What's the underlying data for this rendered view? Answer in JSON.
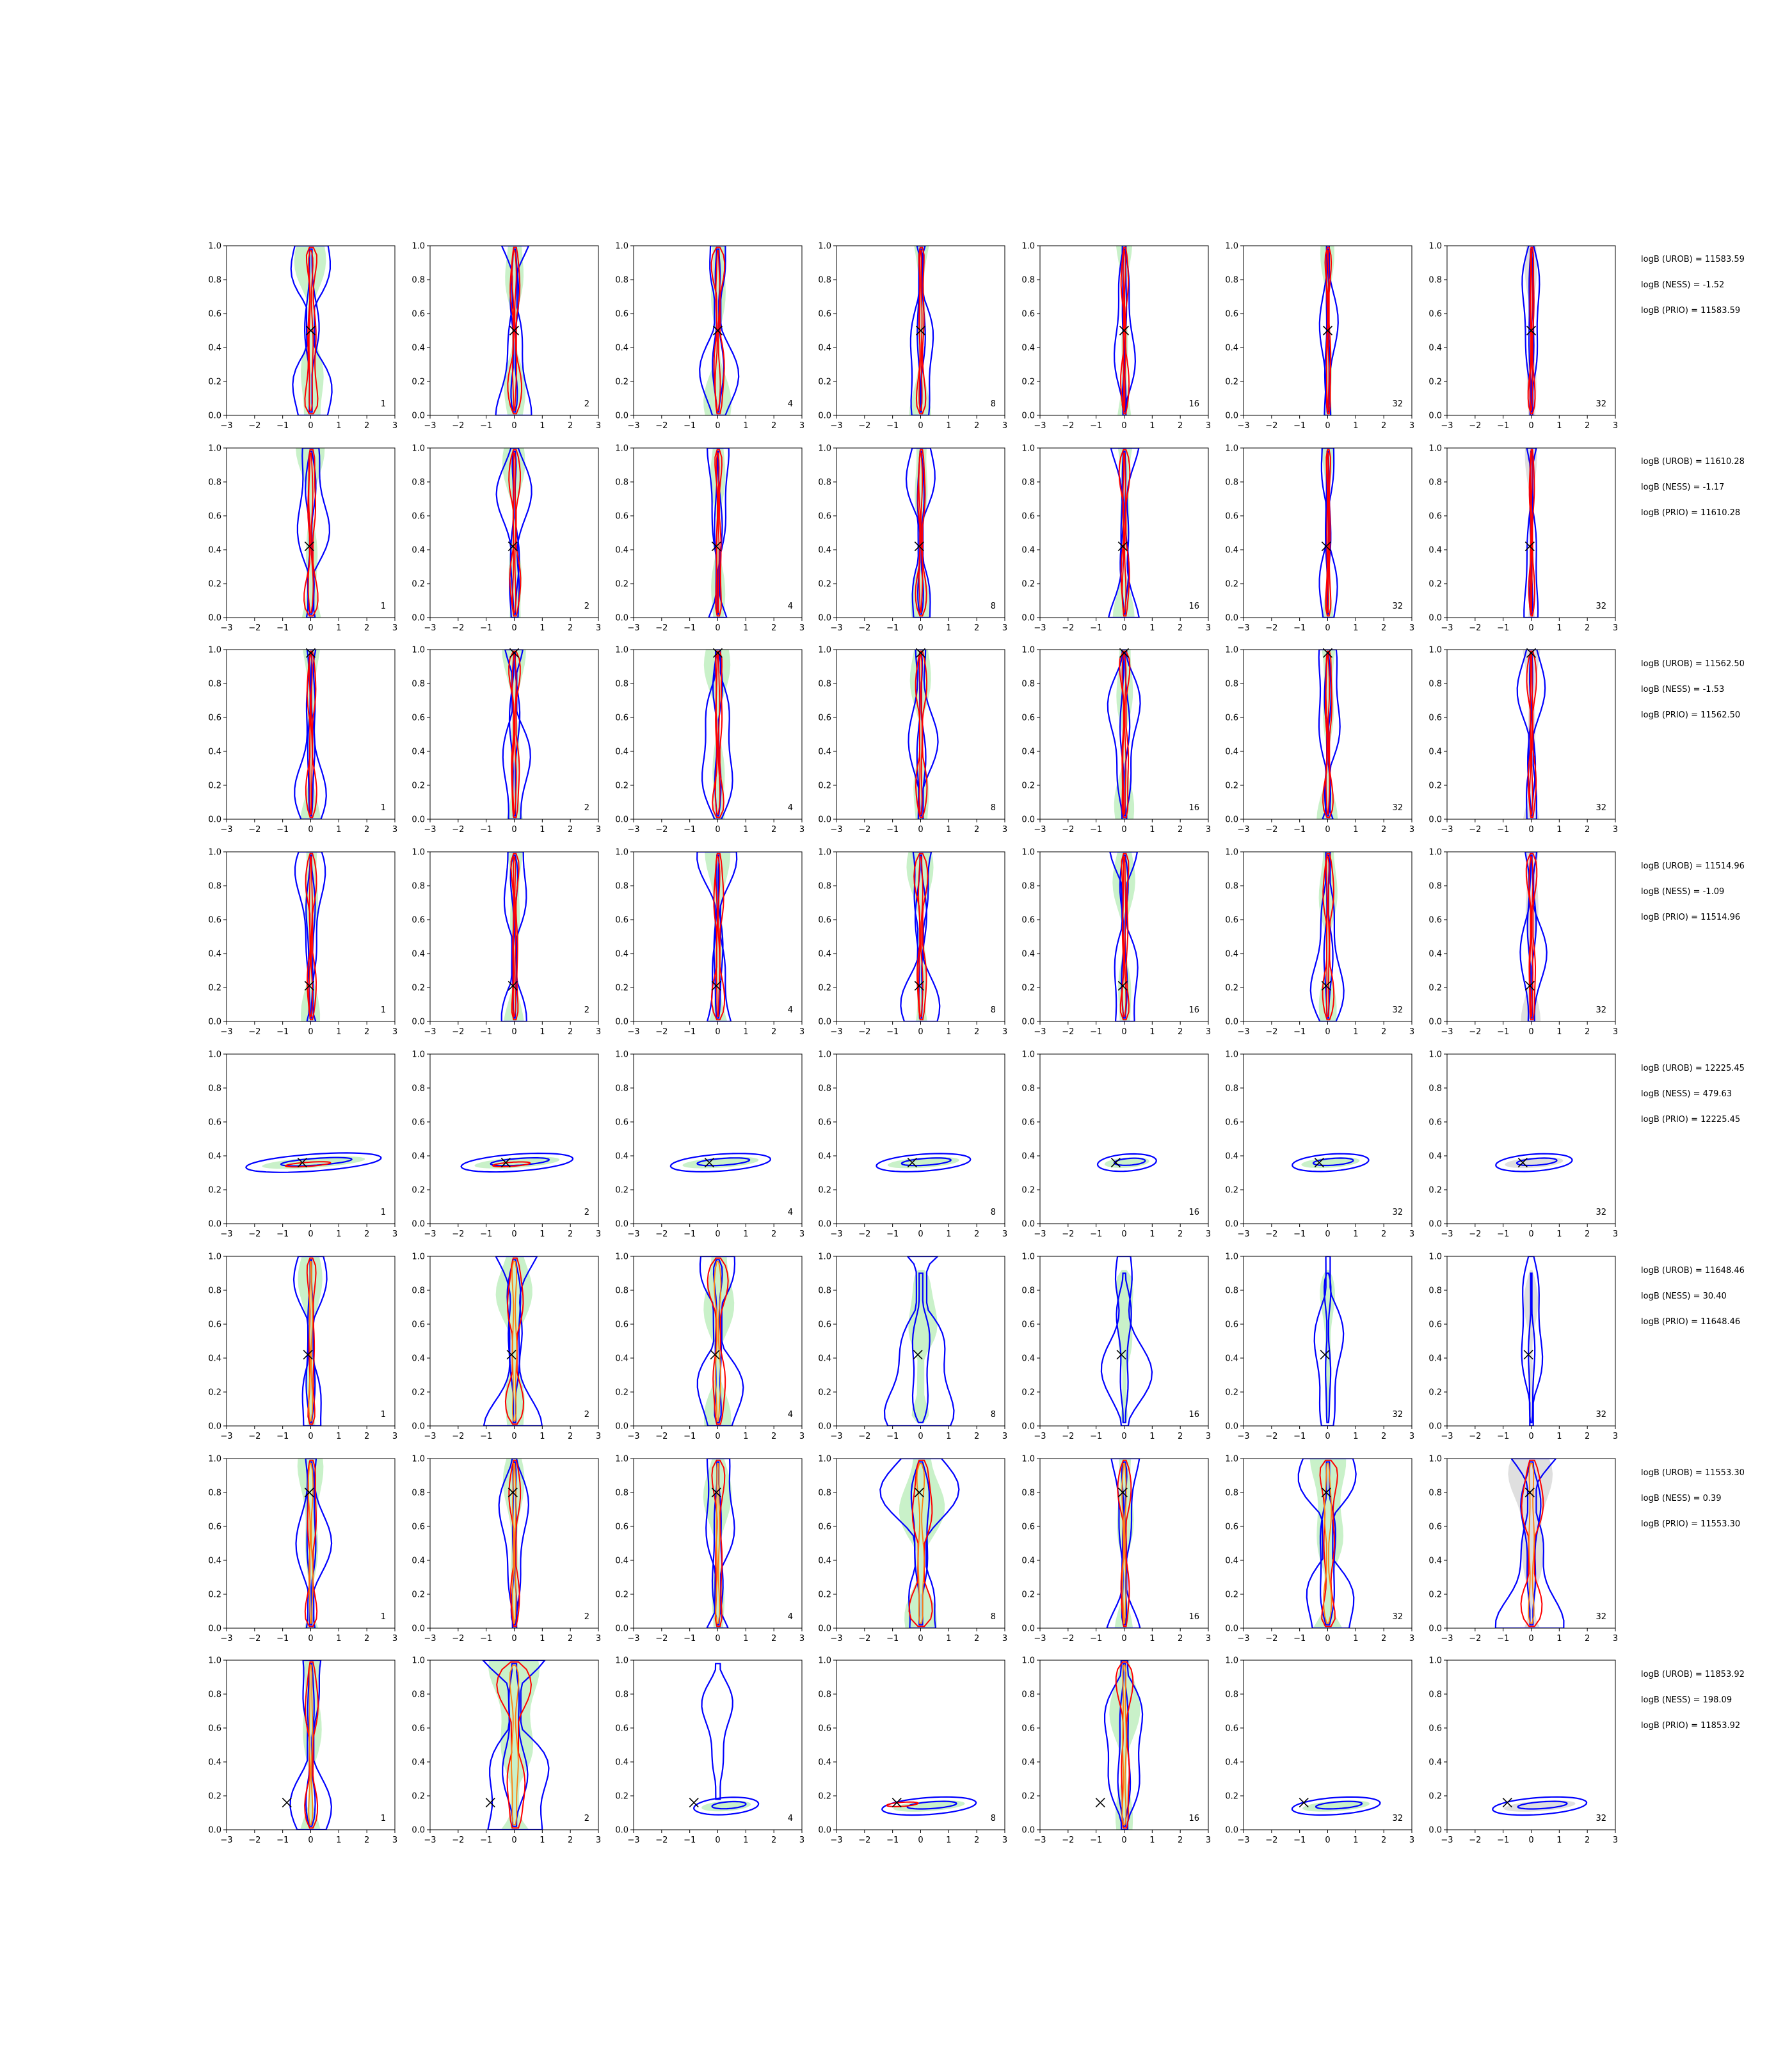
{
  "chart_data": {
    "type": "contour-grid",
    "rows": 8,
    "cols": 7,
    "xlim": [
      -3,
      3
    ],
    "ylim": [
      0,
      1
    ],
    "x_ticks": [
      "−3",
      "−2",
      "−1",
      "0",
      "1",
      "2",
      "3"
    ],
    "y_ticks": [
      "0.0",
      "0.2",
      "0.4",
      "0.6",
      "0.8",
      "1.0"
    ],
    "column_labels": [
      "1",
      "2",
      "4",
      "8",
      "16",
      "32",
      "32"
    ],
    "colors": {
      "outer_contour": "#0000ff",
      "inner_contour": "#ff0000",
      "inner_contour_alt": "#ff7f0e",
      "green_fill": "#bfeebf",
      "grey_fill": "#d9d9d9",
      "marker": "#000000"
    },
    "panels": [
      {
        "row": 0,
        "marker": [
          0.0,
          0.5
        ],
        "shape": "vertical",
        "widths": [
          0.75,
          0.55,
          0.6,
          0.45,
          0.35,
          0.3,
          0.3
        ]
      },
      {
        "row": 1,
        "marker": [
          -0.05,
          0.42
        ],
        "shape": "vertical",
        "widths": [
          0.6,
          0.5,
          0.4,
          0.45,
          0.45,
          0.3,
          0.25
        ]
      },
      {
        "row": 2,
        "marker": [
          0.0,
          0.98
        ],
        "shape": "vertical",
        "widths": [
          0.45,
          0.5,
          0.55,
          0.5,
          0.5,
          0.45,
          0.4
        ]
      },
      {
        "row": 3,
        "marker": [
          -0.05,
          0.21
        ],
        "shape": "vertical",
        "widths": [
          0.45,
          0.45,
          0.55,
          0.55,
          0.5,
          0.5,
          0.45
        ]
      },
      {
        "row": 4,
        "marker": [
          -0.3,
          0.36
        ],
        "shape": "tilted",
        "widths": [
          2.3,
          1.9,
          1.7,
          1.6,
          1.0,
          1.3,
          1.3
        ]
      },
      {
        "row": 5,
        "marker": [
          -0.1,
          0.42
        ],
        "shape": "mixed",
        "widths": [
          0.5,
          0.8,
          0.8,
          1.2,
          0.8,
          0.5,
          0.4
        ]
      },
      {
        "row": 6,
        "marker": [
          -0.05,
          0.8
        ],
        "shape": "vertical",
        "widths": [
          0.6,
          0.45,
          0.6,
          1.1,
          0.5,
          1.0,
          1.0
        ]
      },
      {
        "row": 7,
        "marker": [
          -0.85,
          0.16
        ],
        "shape": "mixed",
        "widths": [
          0.6,
          1.3,
          1.1,
          1.6,
          0.7,
          1.5,
          1.6
        ]
      }
    ]
  },
  "annotations": [
    {
      "urob": "logB (UROB) = 11583.59",
      "ness": "logB (NESS) = -1.52",
      "prio": "logB (PRIO) = 11583.59"
    },
    {
      "urob": "logB (UROB) = 11610.28",
      "ness": "logB (NESS) = -1.17",
      "prio": "logB (PRIO) = 11610.28"
    },
    {
      "urob": "logB (UROB) = 11562.50",
      "ness": "logB (NESS) = -1.53",
      "prio": "logB (PRIO) = 11562.50"
    },
    {
      "urob": "logB (UROB) = 11514.96",
      "ness": "logB (NESS) = -1.09",
      "prio": "logB (PRIO) = 11514.96"
    },
    {
      "urob": "logB (UROB) = 12225.45",
      "ness": "logB (NESS) = 479.63",
      "prio": "logB (PRIO) = 12225.45"
    },
    {
      "urob": "logB (UROB) = 11648.46",
      "ness": "logB (NESS) = 30.40",
      "prio": "logB (PRIO) = 11648.46"
    },
    {
      "urob": "logB (UROB) = 11553.30",
      "ness": "logB (NESS) = 0.39",
      "prio": "logB (PRIO) = 11553.30"
    },
    {
      "urob": "logB (UROB) = 11853.92",
      "ness": "logB (NESS) = 198.09",
      "prio": "logB (PRIO) = 11853.92"
    }
  ]
}
